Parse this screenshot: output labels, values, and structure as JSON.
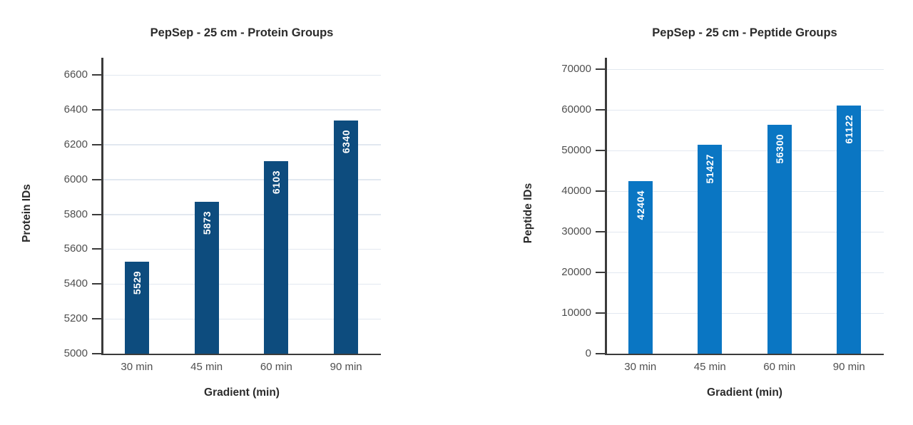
{
  "chart_data": [
    {
      "type": "bar",
      "title": "PepSep - 25 cm - Protein Groups",
      "xlabel": "Gradient (min)",
      "ylabel": "Protein IDs",
      "categories": [
        "30 min",
        "45 min",
        "60 min",
        "90 min"
      ],
      "values": [
        5529,
        5873,
        6103,
        6340
      ],
      "ylim": [
        5000,
        6600
      ],
      "ytick_step": 200,
      "ytick_labels": [
        "5000",
        "5200",
        "5400",
        "5600",
        "5800",
        "6000",
        "6200",
        "6400",
        "6600"
      ],
      "bar_color": "#0d4c7e",
      "value_label_color": "#ffffff",
      "value_label_style": "inside-top-rotated-90",
      "grid": true,
      "legend": false
    },
    {
      "type": "bar",
      "title": "PepSep - 25 cm - Peptide Groups",
      "xlabel": "Gradient (min)",
      "ylabel": "Peptide IDs",
      "categories": [
        "30 min",
        "45 min",
        "60 min",
        "90 min"
      ],
      "values": [
        42404,
        51427,
        56300,
        61122
      ],
      "ylim": [
        0,
        70000
      ],
      "ytick_step": 10000,
      "ytick_labels": [
        "0",
        "10000",
        "20000",
        "30000",
        "40000",
        "50000",
        "60000",
        "70000"
      ],
      "bar_color": "#0a76c3",
      "value_label_color": "#ffffff",
      "value_label_style": "inside-top-rotated-90",
      "grid": true,
      "legend": false
    }
  ],
  "colors": {
    "background": "#ffffff",
    "axis": "#3b3b3b",
    "gridline": "#e2e8f0",
    "tick_label": "#4f4f4f",
    "title_text": "#2b2b2b",
    "protein_bar": "#0d4c7e",
    "peptide_bar": "#0a76c3",
    "bar_value_text": "#ffffff"
  }
}
